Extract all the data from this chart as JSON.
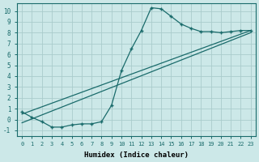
{
  "xlabel": "Humidex (Indice chaleur)",
  "bg_color": "#cce8e8",
  "grid_color": "#aacccc",
  "line_color": "#1a6b6b",
  "xlim": [
    -0.5,
    23.5
  ],
  "ylim": [
    -1.5,
    10.7
  ],
  "xticks": [
    0,
    1,
    2,
    3,
    4,
    5,
    6,
    7,
    8,
    9,
    10,
    11,
    12,
    13,
    14,
    15,
    16,
    17,
    18,
    19,
    20,
    21,
    22,
    23
  ],
  "yticks": [
    -1,
    0,
    1,
    2,
    3,
    4,
    5,
    6,
    7,
    8,
    9,
    10
  ],
  "line1_x": [
    0,
    1,
    2,
    3,
    4,
    5,
    6,
    7,
    8,
    9,
    10,
    11,
    12,
    13,
    14,
    15,
    16,
    17,
    18,
    19,
    20,
    21,
    22,
    23
  ],
  "line1_y": [
    0.7,
    0.2,
    -0.2,
    -0.7,
    -0.7,
    -0.5,
    -0.4,
    -0.4,
    -0.2,
    1.3,
    4.5,
    6.5,
    8.2,
    10.3,
    10.2,
    9.5,
    8.8,
    8.4,
    8.1,
    8.1,
    8.0,
    8.1,
    8.2,
    8.2
  ],
  "line2_x": [
    0,
    23
  ],
  "line2_y": [
    0.5,
    8.2
  ],
  "line3_x": [
    0,
    23
  ],
  "line3_y": [
    -0.3,
    8.0
  ]
}
